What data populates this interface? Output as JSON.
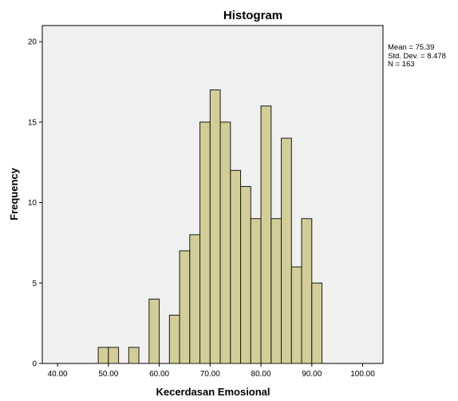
{
  "chart_data": {
    "type": "bar",
    "title": "Histogram",
    "xlabel": "Kecerdasan Emosional",
    "ylabel": "Frequency",
    "xlim": [
      37,
      104
    ],
    "ylim": [
      0,
      21
    ],
    "x_ticks": [
      "40.00",
      "50.00",
      "60.00",
      "70.00",
      "80.00",
      "90.00",
      "100.00"
    ],
    "x_tick_values": [
      40,
      50,
      60,
      70,
      80,
      90,
      100
    ],
    "y_ticks": [
      0,
      5,
      10,
      15,
      20
    ],
    "bin_width": 2,
    "bins": [
      {
        "x0": 48,
        "x1": 50,
        "value": 1
      },
      {
        "x0": 50,
        "x1": 52,
        "value": 1
      },
      {
        "x0": 54,
        "x1": 56,
        "value": 1
      },
      {
        "x0": 58,
        "x1": 60,
        "value": 4
      },
      {
        "x0": 62,
        "x1": 64,
        "value": 3
      },
      {
        "x0": 64,
        "x1": 66,
        "value": 7
      },
      {
        "x0": 66,
        "x1": 68,
        "value": 8
      },
      {
        "x0": 68,
        "x1": 70,
        "value": 15
      },
      {
        "x0": 70,
        "x1": 72,
        "value": 17
      },
      {
        "x0": 72,
        "x1": 74,
        "value": 15
      },
      {
        "x0": 74,
        "x1": 76,
        "value": 12
      },
      {
        "x0": 76,
        "x1": 78,
        "value": 11
      },
      {
        "x0": 78,
        "x1": 80,
        "value": 9
      },
      {
        "x0": 80,
        "x1": 82,
        "value": 16
      },
      {
        "x0": 82,
        "x1": 84,
        "value": 9
      },
      {
        "x0": 84,
        "x1": 86,
        "value": 14
      },
      {
        "x0": 86,
        "x1": 88,
        "value": 6
      },
      {
        "x0": 88,
        "x1": 90,
        "value": 9
      },
      {
        "x0": 90,
        "x1": 92,
        "value": 5
      }
    ],
    "grid": false,
    "stats": {
      "mean": "Mean = 75.39",
      "std_dev": "Std. Dev. = 8.478",
      "n": "N = 163"
    },
    "colors": {
      "bar_fill": "#d3ce97",
      "bar_stroke": "#1a1a1a",
      "plot_background": "#f0f0f0"
    }
  }
}
